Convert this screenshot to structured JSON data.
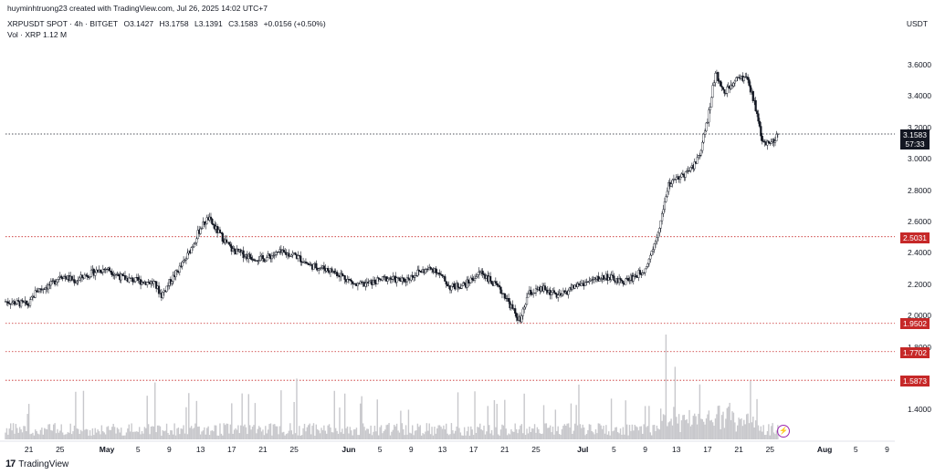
{
  "header": {
    "attribution": "huyminhtruong23 created with TradingView.com, Jul 26, 2025 14:02 UTC+7",
    "symbol": "XRPUSDT SPOT · 4h · BITGET",
    "ohlc": {
      "open": "O3.1427",
      "high": "H3.1758",
      "low": "L3.1391",
      "close": "C3.1583",
      "change": "+0.0156 (+0.50%)"
    },
    "volume": "Vol · XRP  1.12 M"
  },
  "currency_label": "USDT",
  "current_price": {
    "value": "3.1583",
    "countdown": "57:33"
  },
  "horizontal_lines": [
    {
      "value": 3.1583,
      "label": "3.1583",
      "color": "#131722"
    },
    {
      "value": 2.5031,
      "label": "2.5031",
      "color": "#c62828"
    },
    {
      "value": 1.9502,
      "label": "1.9502",
      "color": "#c62828"
    },
    {
      "value": 1.7702,
      "label": "1.7702",
      "color": "#c62828"
    },
    {
      "value": 1.5873,
      "label": "1.5873",
      "color": "#c62828"
    }
  ],
  "footer": {
    "brand": "TradingView"
  },
  "colors": {
    "candle": "#131722",
    "volume": "#c8c8cc",
    "level_line": "#c62828",
    "last_price_tag": "#131722",
    "alert_icon": "#9c27b0"
  },
  "chart_data": {
    "type": "candlestick",
    "title": "XRPUSDT SPOT · 4h · BITGET",
    "ylabel": "USDT",
    "ylim": [
      1.3,
      3.85
    ],
    "grid": false,
    "y_ticks": [
      "3.6000",
      "3.4000",
      "3.2000",
      "3.0000",
      "2.8000",
      "2.6000",
      "2.4000",
      "2.2000",
      "2.0000",
      "1.8000",
      "1.4000"
    ],
    "x_ticks": [
      "21",
      "25",
      "May",
      "5",
      "9",
      "13",
      "17",
      "21",
      "25",
      "Jun",
      "5",
      "9",
      "13",
      "17",
      "21",
      "25",
      "Jul",
      "5",
      "9",
      "13",
      "17",
      "21",
      "25",
      "Aug",
      "5",
      "9"
    ],
    "month_ticks": [
      "May",
      "Jun",
      "Jul",
      "Aug"
    ],
    "x_start": "2025-04-18",
    "x_end": "2025-08-10",
    "close_series": [
      [
        "2025-04-18",
        2.09
      ],
      [
        "2025-04-21",
        2.07
      ],
      [
        "2025-04-22",
        2.16
      ],
      [
        "2025-04-24",
        2.2
      ],
      [
        "2025-04-25",
        2.26
      ],
      [
        "2025-04-27",
        2.22
      ],
      [
        "2025-04-28",
        2.25
      ],
      [
        "2025-04-30",
        2.29
      ],
      [
        "2025-05-01",
        2.3
      ],
      [
        "2025-05-03",
        2.24
      ],
      [
        "2025-05-05",
        2.22
      ],
      [
        "2025-05-07",
        2.21
      ],
      [
        "2025-05-08",
        2.13
      ],
      [
        "2025-05-09",
        2.21
      ],
      [
        "2025-05-11",
        2.35
      ],
      [
        "2025-05-12",
        2.45
      ],
      [
        "2025-05-13",
        2.56
      ],
      [
        "2025-05-14",
        2.62
      ],
      [
        "2025-05-15",
        2.55
      ],
      [
        "2025-05-17",
        2.42
      ],
      [
        "2025-05-19",
        2.38
      ],
      [
        "2025-05-21",
        2.36
      ],
      [
        "2025-05-23",
        2.4
      ],
      [
        "2025-05-25",
        2.39
      ],
      [
        "2025-05-27",
        2.32
      ],
      [
        "2025-05-29",
        2.3
      ],
      [
        "2025-05-31",
        2.26
      ],
      [
        "2025-06-02",
        2.19
      ],
      [
        "2025-06-04",
        2.21
      ],
      [
        "2025-06-06",
        2.24
      ],
      [
        "2025-06-08",
        2.22
      ],
      [
        "2025-06-10",
        2.28
      ],
      [
        "2025-06-12",
        2.3
      ],
      [
        "2025-06-14",
        2.18
      ],
      [
        "2025-06-16",
        2.2
      ],
      [
        "2025-06-18",
        2.28
      ],
      [
        "2025-06-20",
        2.18
      ],
      [
        "2025-06-21",
        2.13
      ],
      [
        "2025-06-22",
        2.04
      ],
      [
        "2025-06-23",
        1.96
      ],
      [
        "2025-06-24",
        2.14
      ],
      [
        "2025-06-26",
        2.17
      ],
      [
        "2025-06-28",
        2.12
      ],
      [
        "2025-06-30",
        2.19
      ],
      [
        "2025-07-02",
        2.22
      ],
      [
        "2025-07-04",
        2.25
      ],
      [
        "2025-07-06",
        2.21
      ],
      [
        "2025-07-08",
        2.26
      ],
      [
        "2025-07-09",
        2.3
      ],
      [
        "2025-07-10",
        2.43
      ],
      [
        "2025-07-11",
        2.6
      ],
      [
        "2025-07-12",
        2.84
      ],
      [
        "2025-07-13",
        2.86
      ],
      [
        "2025-07-14",
        2.9
      ],
      [
        "2025-07-15",
        2.94
      ],
      [
        "2025-07-16",
        3.03
      ],
      [
        "2025-07-17",
        3.25
      ],
      [
        "2025-07-18",
        3.55
      ],
      [
        "2025-07-19",
        3.43
      ],
      [
        "2025-07-20",
        3.46
      ],
      [
        "2025-07-21",
        3.52
      ],
      [
        "2025-07-22",
        3.51
      ],
      [
        "2025-07-23",
        3.36
      ],
      [
        "2025-07-24",
        3.12
      ],
      [
        "2025-07-25",
        3.09
      ],
      [
        "2025-07-26",
        3.1583
      ]
    ]
  }
}
